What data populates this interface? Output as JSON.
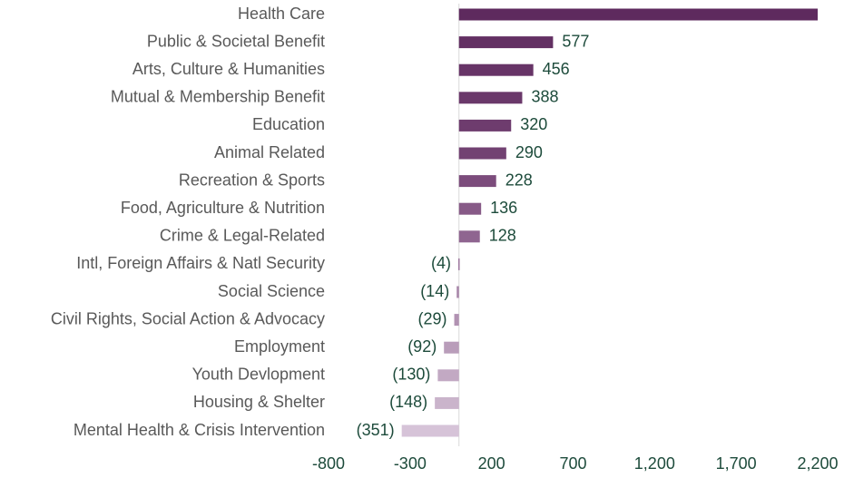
{
  "chart_data": {
    "type": "bar",
    "orientation": "horizontal",
    "categories": [
      "Health Care",
      "Public & Societal Benefit",
      "Arts, Culture & Humanities",
      "Mutual & Membership Benefit",
      "Education",
      "Animal Related",
      "Recreation & Sports",
      "Food, Agriculture & Nutrition",
      "Crime & Legal-Related",
      "Intl, Foreign Affairs & Natl Security",
      "Social Science",
      "Civil Rights, Social Action & Advocacy",
      "Employment",
      "Youth Devlopment",
      "Housing & Shelter",
      "Mental Health & Crisis Intervention"
    ],
    "values": [
      2200,
      577,
      456,
      388,
      320,
      290,
      228,
      136,
      128,
      -4,
      -14,
      -29,
      -92,
      -130,
      -148,
      -351
    ],
    "value_labels": [
      null,
      "577",
      "456",
      "388",
      "320",
      "290",
      "228",
      "136",
      "128",
      "(4)",
      "(14)",
      "(29)",
      "(92)",
      "(130)",
      "(148)",
      "(351)"
    ],
    "colors": [
      "#5e2a5e",
      "#633063",
      "#673467",
      "#6a386a",
      "#6e3c6e",
      "#724272",
      "#7c4c7c",
      "#875a87",
      "#8f6590",
      "#9c759d",
      "#a886a9",
      "#b192b2",
      "#b99dba",
      "#c2a9c3",
      "#cab4cb",
      "#d6c3d8"
    ],
    "xlim": [
      -800,
      2200
    ],
    "xticks": [
      -800,
      -300,
      200,
      700,
      {
        "value": 1200,
        "label": "1,200"
      },
      {
        "value": 1700,
        "label": "1,700"
      },
      {
        "value": 2200,
        "label": "2,200"
      }
    ]
  }
}
